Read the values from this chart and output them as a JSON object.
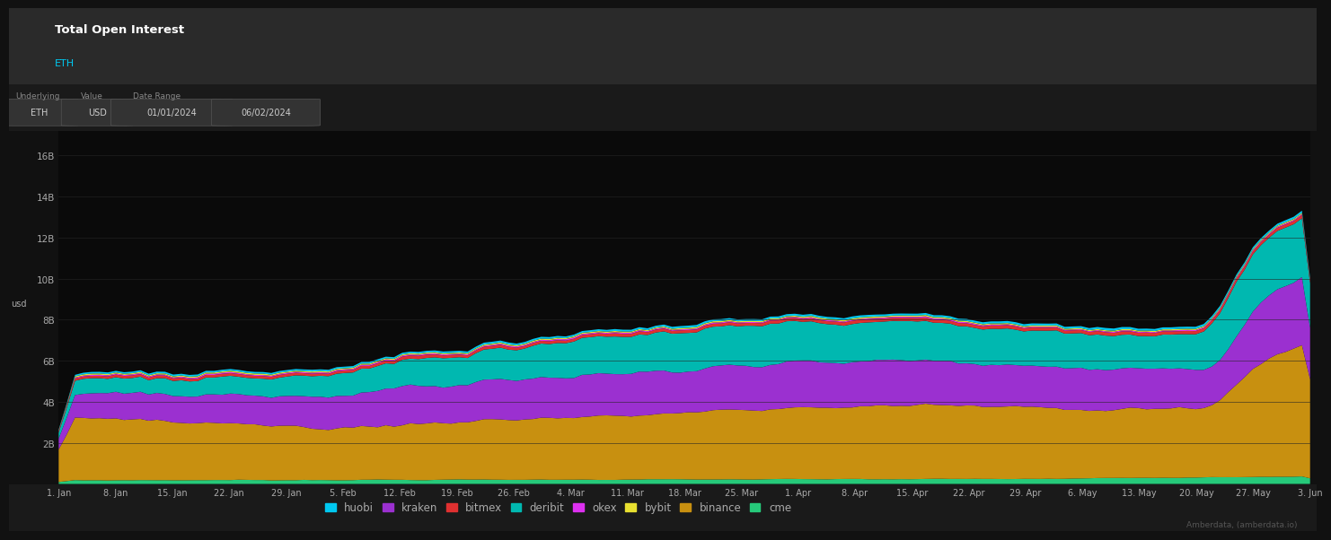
{
  "title": "Total Open Interest",
  "subtitle": "ETH",
  "ylabel": "usd",
  "background_color": "#111111",
  "chart_bg": "#0a0a0a",
  "header_bg": "#2a2a2a",
  "grid_color": "#252525",
  "text_color": "#aaaaaa",
  "ylim": [
    0,
    17200000000.0
  ],
  "yticks": [
    2000000000.0,
    4000000000.0,
    6000000000.0,
    8000000000.0,
    10000000000.0,
    12000000000.0,
    14000000000.0,
    16000000000.0
  ],
  "ytick_labels": [
    "2B",
    "4B",
    "6B",
    "8B",
    "10B",
    "12B",
    "14B",
    "16B"
  ],
  "n_points": 154,
  "series_colors": {
    "cme": "#26c97a",
    "binance": "#c89010",
    "kraken": "#9b30d0",
    "deribit": "#00b8b0",
    "bitmex": "#e03030",
    "huobi": "#00c8f0",
    "okex": "#dd30f0",
    "bybit": "#e8e030"
  },
  "legend_order": [
    "huobi",
    "kraken",
    "bitmex",
    "deribit",
    "okex",
    "bybit",
    "binance",
    "cme"
  ],
  "legend_colors": [
    "#00c8f0",
    "#9b30d0",
    "#e03030",
    "#00b8b0",
    "#dd30f0",
    "#e8e030",
    "#c89010",
    "#26c97a"
  ],
  "xtick_labels": [
    "1. Jan",
    "8. Jan",
    "15. Jan",
    "22. Jan",
    "29. Jan",
    "5. Feb",
    "12. Feb",
    "19. Feb",
    "26. Feb",
    "4. Mar",
    "11. Mar",
    "18. Mar",
    "25. Mar",
    "1. Apr",
    "8. Apr",
    "15. Apr",
    "22. Apr",
    "29. Apr",
    "6. May",
    "13. May",
    "20. May",
    "27. May",
    "3. Jun"
  ],
  "footer_text": "Amberdata, (amberdata.io)"
}
